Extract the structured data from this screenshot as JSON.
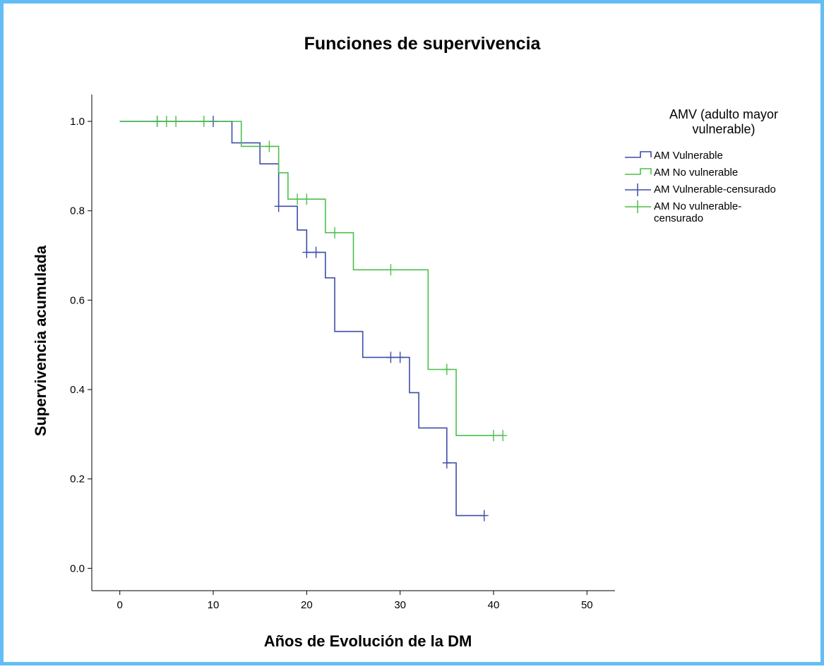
{
  "chart_data": {
    "type": "line",
    "subtype": "kaplan-meier step",
    "title": "Funciones de supervivencia",
    "xlabel": "Años de Evolución de la DM",
    "ylabel": "Supervivencia acumulada",
    "xlim": [
      -3,
      53
    ],
    "ylim": [
      -0.05,
      1.06
    ],
    "xticks": [
      0,
      10,
      20,
      30,
      40,
      50
    ],
    "xtick_labels": [
      "0",
      "10",
      "20",
      "30",
      "40",
      "50"
    ],
    "yticks": [
      0.0,
      0.2,
      0.4,
      0.6,
      0.8,
      1.0
    ],
    "ytick_labels": [
      "0.0",
      "0.2",
      "0.4",
      "0.6",
      "0.8",
      "1.0"
    ],
    "grid": false,
    "legend": {
      "title": "AMV (adulto mayor vulnerable)",
      "title_lines": [
        "AMV (adulto mayor",
        "vulnerable)"
      ],
      "placement": "right",
      "entries": [
        {
          "lines": [
            "AM Vulnerable"
          ],
          "kind": "step",
          "color": "#3D4DA8"
        },
        {
          "lines": [
            "AM No vulnerable"
          ],
          "kind": "step",
          "color": "#4CBF4C"
        },
        {
          "lines": [
            "AM Vulnerable-censurado"
          ],
          "kind": "censor",
          "color": "#3D4DA8"
        },
        {
          "lines": [
            "AM No vulnerable-",
            "censurado"
          ],
          "kind": "censor",
          "color": "#4CBF4C"
        }
      ]
    },
    "series": [
      {
        "name": "AM Vulnerable",
        "color": "#3D4DA8",
        "x": [
          0,
          12,
          15,
          17,
          19,
          20,
          22,
          23,
          26,
          31,
          32,
          35,
          36,
          39
        ],
        "y": [
          1.0,
          0.952,
          0.905,
          0.81,
          0.757,
          0.707,
          0.65,
          0.53,
          0.472,
          0.393,
          0.314,
          0.236,
          0.118,
          0.118
        ],
        "censored": [
          [
            4,
            1.0
          ],
          [
            10,
            1.0
          ],
          [
            17,
            0.81
          ],
          [
            20,
            0.707
          ],
          [
            21,
            0.707
          ],
          [
            29,
            0.472
          ],
          [
            30,
            0.472
          ],
          [
            35,
            0.236
          ],
          [
            39,
            0.118
          ]
        ]
      },
      {
        "name": "AM No vulnerable",
        "color": "#4CBF4C",
        "x": [
          0,
          13,
          17,
          18,
          22,
          25,
          33,
          36,
          41
        ],
        "y": [
          1.0,
          0.944,
          0.885,
          0.826,
          0.751,
          0.668,
          0.445,
          0.297,
          0.297
        ],
        "censored": [
          [
            4,
            1.0
          ],
          [
            5,
            1.0
          ],
          [
            6,
            1.0
          ],
          [
            9,
            1.0
          ],
          [
            16,
            0.944
          ],
          [
            19,
            0.826
          ],
          [
            20,
            0.826
          ],
          [
            23,
            0.751
          ],
          [
            29,
            0.668
          ],
          [
            35,
            0.445
          ],
          [
            40,
            0.297
          ],
          [
            41,
            0.297
          ]
        ]
      }
    ]
  }
}
